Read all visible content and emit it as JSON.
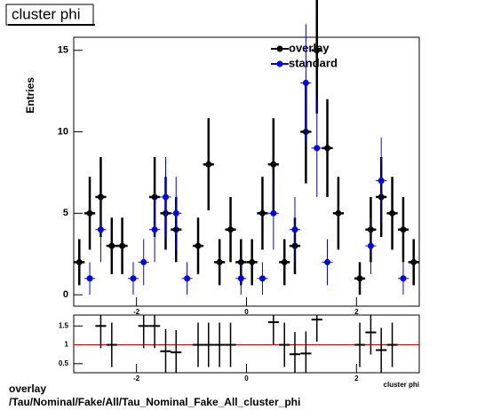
{
  "chart_data": [
    {
      "type": "errorbar",
      "title": "cluster phi",
      "ylabel": "Entries",
      "xlim": [
        -3.1416,
        3.1416
      ],
      "ylim": [
        -0.7,
        15.8
      ],
      "xticks": [
        -2,
        0,
        2
      ],
      "yticks": [
        0,
        5,
        10,
        15
      ],
      "x": [
        -3.04,
        -2.85,
        -2.65,
        -2.45,
        -2.26,
        -2.06,
        -1.87,
        -1.67,
        -1.47,
        -1.28,
        -1.08,
        -0.88,
        -0.69,
        -0.49,
        -0.29,
        -0.1,
        0.1,
        0.29,
        0.49,
        0.69,
        0.88,
        1.08,
        1.28,
        1.47,
        1.67,
        1.87,
        2.06,
        2.26,
        2.45,
        2.65,
        2.85,
        3.04
      ],
      "series": [
        {
          "name": "overlay",
          "color": "#000000",
          "values": [
            2,
            5,
            6,
            3,
            3,
            null,
            null,
            6,
            5,
            4,
            null,
            3,
            8,
            2,
            4,
            2,
            2,
            5,
            8,
            2,
            3,
            10,
            15,
            9,
            5,
            null,
            1,
            4,
            6,
            5,
            4,
            2
          ]
        },
        {
          "name": "standard",
          "color": "#0000ee",
          "values": [
            null,
            1,
            4,
            null,
            null,
            1,
            2,
            4,
            6,
            5,
            1,
            null,
            null,
            null,
            null,
            1,
            null,
            1,
            5,
            null,
            4,
            13,
            9,
            2,
            null,
            null,
            null,
            3,
            7,
            null,
            1,
            null
          ]
        }
      ]
    },
    {
      "type": "ratio",
      "xlabel": "cluster phi",
      "xlim": [
        -3.1416,
        3.1416
      ],
      "ylim": [
        0.26,
        1.79
      ],
      "xticks": [
        -2,
        0,
        2
      ],
      "yticks": [
        0.5,
        1,
        1.5
      ],
      "hline": 1,
      "hline_color": "#cc0000",
      "x": [
        -3.04,
        -2.85,
        -2.65,
        -2.45,
        -2.26,
        -2.06,
        -1.87,
        -1.67,
        -1.47,
        -1.28,
        -1.08,
        -0.88,
        -0.69,
        -0.49,
        -0.29,
        -0.1,
        0.1,
        0.29,
        0.49,
        0.69,
        0.88,
        1.08,
        1.28,
        1.47,
        1.67,
        1.87,
        2.06,
        2.26,
        2.45,
        2.65,
        2.85,
        3.04
      ],
      "series": [
        {
          "color": "#000000",
          "values": [
            null,
            null,
            1.5,
            1.0,
            null,
            null,
            1.5,
            1.5,
            0.83,
            0.8,
            null,
            1.0,
            1.0,
            1.0,
            1.0,
            null,
            null,
            null,
            1.6,
            1.0,
            0.75,
            0.77,
            1.67,
            null,
            null,
            null,
            1.0,
            1.33,
            0.86,
            1.0,
            null,
            null
          ]
        }
      ]
    }
  ],
  "footer": {
    "line1": "overlay",
    "line2": "/Tau/Nominal/Fake/All/Tau_Nominal_Fake_All_cluster_phi"
  }
}
